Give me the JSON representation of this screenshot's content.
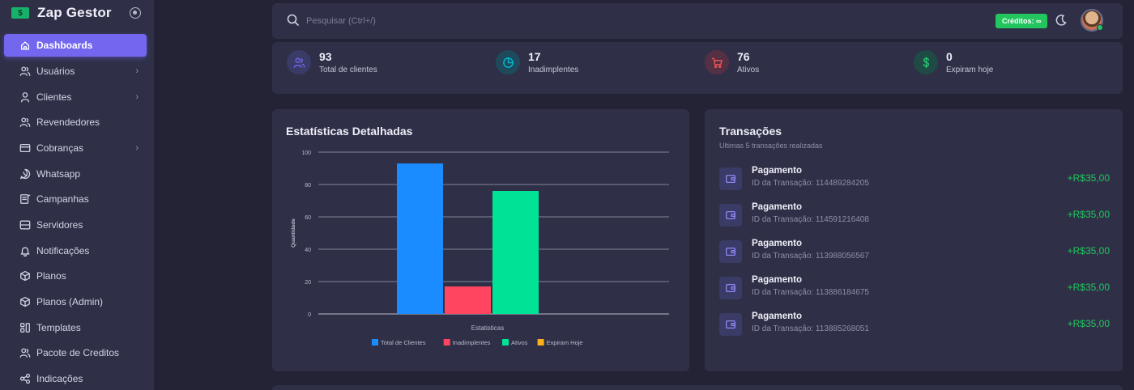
{
  "app": {
    "name": "Zap Gestor",
    "logo_glyph": "$"
  },
  "sidebar": {
    "items": [
      {
        "label": "Dashboards",
        "icon": "home-icon",
        "active": true,
        "chevron": false
      },
      {
        "label": "Usuários",
        "icon": "users-icon",
        "active": false,
        "chevron": true
      },
      {
        "label": "Clientes",
        "icon": "user-icon",
        "active": false,
        "chevron": true
      },
      {
        "label": "Revendedores",
        "icon": "users-icon",
        "active": false,
        "chevron": false
      },
      {
        "label": "Cobranças",
        "icon": "credit-card-icon",
        "active": false,
        "chevron": true
      },
      {
        "label": "Whatsapp",
        "icon": "whatsapp-icon",
        "active": false,
        "chevron": false
      },
      {
        "label": "Campanhas",
        "icon": "campaign-icon",
        "active": false,
        "chevron": false
      },
      {
        "label": "Servidores",
        "icon": "server-icon",
        "active": false,
        "chevron": false
      },
      {
        "label": "Notificações",
        "icon": "bell-icon",
        "active": false,
        "chevron": false
      },
      {
        "label": "Planos",
        "icon": "package-icon",
        "active": false,
        "chevron": false
      },
      {
        "label": "Planos (Admin)",
        "icon": "package-icon",
        "active": false,
        "chevron": false
      },
      {
        "label": "Templates",
        "icon": "template-icon",
        "active": false,
        "chevron": false
      },
      {
        "label": "Pacote de Creditos",
        "icon": "users-icon",
        "active": false,
        "chevron": false
      },
      {
        "label": "Indicações",
        "icon": "share-icon",
        "active": false,
        "chevron": false
      }
    ]
  },
  "topbar": {
    "search_placeholder": "Pesquisar (Ctrl+/)",
    "credits_label": "Créditos: ∞"
  },
  "stats": [
    {
      "value": "93",
      "label": "Total de clientes",
      "icon": "users-icon",
      "color": "#7367f0",
      "bg": "#3a3b66"
    },
    {
      "value": "17",
      "label": "Inadimplentes",
      "icon": "pie-chart-icon",
      "color": "#00bad1",
      "bg": "#1f4a5c"
    },
    {
      "value": "76",
      "label": "Ativos",
      "icon": "shopping-cart-icon",
      "color": "#ea5455",
      "bg": "#553045"
    },
    {
      "value": "0",
      "label": "Expiram hoje",
      "icon": "dollar-icon",
      "color": "#28c76f",
      "bg": "#1f4a45"
    }
  ],
  "chart_card": {
    "title": "Estatísticas Detalhadas"
  },
  "chart_data": {
    "type": "bar",
    "categories": [
      "Estatisticas"
    ],
    "series": [
      {
        "name": "Total de Clientes",
        "values": [
          93
        ],
        "color": "#1a8cff"
      },
      {
        "name": "Inadimplentes",
        "values": [
          17
        ],
        "color": "#ff4560"
      },
      {
        "name": "Ativos",
        "values": [
          76
        ],
        "color": "#00e396"
      },
      {
        "name": "Expiram Hoje",
        "values": [
          0
        ],
        "color": "#feb019"
      }
    ],
    "ylabel": "Quantidade",
    "xlabel": "",
    "ylim": [
      0,
      100
    ],
    "yticks": [
      0,
      20,
      40,
      60,
      80,
      100
    ],
    "grid": true,
    "legend": "bottom"
  },
  "transactions": {
    "title": "Transações",
    "subtitle": "Ultimas 5 transações realizadas",
    "items": [
      {
        "title": "Pagamento",
        "id": "ID da Transação: 114489284205",
        "amount": "+R$35,00"
      },
      {
        "title": "Pagamento",
        "id": "ID da Transação: 114591216408",
        "amount": "+R$35,00"
      },
      {
        "title": "Pagamento",
        "id": "ID da Transação: 113988056567",
        "amount": "+R$35,00"
      },
      {
        "title": "Pagamento",
        "id": "ID da Transação: 113886184675",
        "amount": "+R$35,00"
      },
      {
        "title": "Pagamento",
        "id": "ID da Transação: 113885268051",
        "amount": "+R$35,00"
      }
    ]
  }
}
